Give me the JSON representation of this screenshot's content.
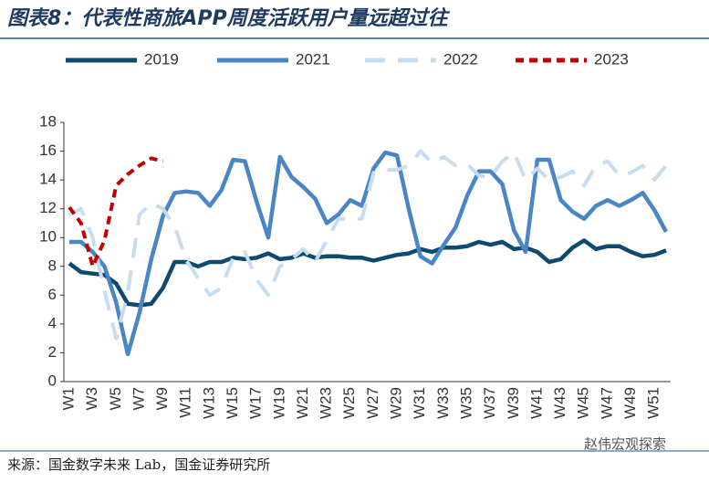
{
  "chart_data": {
    "type": "line",
    "title": "图表8：代表性商旅APP周度活跃用户量远超过往",
    "source": "来源：国金数字未来 Lab，国金证券研究所",
    "watermark": "赵伟宏观探索",
    "categories": [
      "W1",
      null,
      "W3",
      null,
      "W5",
      null,
      "W7",
      null,
      "W9",
      null,
      "W11",
      null,
      "W13",
      null,
      "W15",
      null,
      "W17",
      null,
      "W19",
      null,
      "W21",
      null,
      "W23",
      null,
      "W25",
      null,
      "W27",
      null,
      "W29",
      null,
      "W31",
      null,
      "W33",
      null,
      "W35",
      null,
      "W37",
      null,
      "W39",
      null,
      "W41",
      null,
      "W43",
      null,
      "W45",
      null,
      "W47",
      null,
      "W49",
      null,
      "W51",
      null
    ],
    "series": [
      {
        "name": "2019",
        "color": "#0d4a6e",
        "line_style": "solid",
        "values": [
          8.2,
          7.6,
          7.5,
          7.4,
          6.8,
          5.4,
          5.3,
          5.4,
          6.5,
          8.3,
          8.3,
          8.0,
          8.3,
          8.3,
          8.6,
          8.5,
          8.6,
          8.9,
          8.5,
          8.6,
          8.9,
          8.6,
          8.7,
          8.7,
          8.6,
          8.6,
          8.4,
          8.6,
          8.8,
          8.9,
          9.2,
          9.0,
          9.3,
          9.3,
          9.4,
          9.7,
          9.5,
          9.7,
          9.2,
          9.3,
          9.0,
          8.3,
          8.5,
          9.3,
          9.8,
          9.2,
          9.4,
          9.4,
          9.0,
          8.7,
          8.8,
          9.1
        ]
      },
      {
        "name": "2021",
        "color": "#4a86c5",
        "line_style": "solid",
        "values": [
          9.7,
          9.7,
          9.0,
          8.0,
          5.5,
          1.9,
          4.8,
          8.5,
          11.5,
          13.1,
          13.2,
          13.1,
          12.2,
          13.3,
          15.4,
          15.3,
          12.5,
          10.0,
          15.6,
          14.2,
          13.5,
          12.7,
          11.0,
          11.6,
          12.6,
          12.2,
          14.8,
          15.9,
          15.7,
          12.0,
          8.7,
          8.2,
          9.5,
          10.7,
          12.9,
          14.6,
          14.6,
          13.7,
          10.5,
          9.0,
          15.4,
          15.4,
          12.6,
          11.8,
          11.3,
          12.2,
          12.6,
          12.2,
          12.6,
          13.1,
          11.9,
          10.4
        ]
      },
      {
        "name": "2022",
        "color": "#c8dcef",
        "line_style": "dashed",
        "values": [
          11.6,
          12.0,
          10.0,
          6.3,
          3.0,
          6.2,
          11.6,
          12.4,
          12.0,
          10.8,
          8.4,
          7.2,
          6.0,
          6.5,
          8.6,
          9.0,
          7.1,
          6.0,
          8.0,
          8.5,
          9.2,
          8.3,
          9.8,
          11.3,
          11.3,
          11.3,
          14.5,
          14.7,
          14.7,
          15.0,
          16.0,
          15.2,
          15.6,
          15.0,
          15.1,
          14.3,
          14.2,
          15.3,
          15.9,
          14.0,
          14.8,
          14.0,
          14.2,
          14.6,
          13.6,
          15.0,
          15.3,
          14.3,
          14.5,
          15.0,
          14.0,
          15.0
        ]
      },
      {
        "name": "2023",
        "color": "#c00000",
        "line_style": "dashed",
        "values": [
          12.1,
          11.0,
          8.0,
          9.8,
          13.6,
          14.4,
          15.0,
          15.5,
          15.3,
          null,
          null,
          null,
          null,
          null,
          null,
          null,
          null,
          null,
          null,
          null,
          null,
          null,
          null,
          null,
          null,
          null,
          null,
          null,
          null,
          null,
          null,
          null,
          null,
          null,
          null,
          null,
          null,
          null,
          null,
          null,
          null,
          null,
          null,
          null,
          null,
          null,
          null,
          null,
          null,
          null,
          null,
          null
        ]
      }
    ],
    "ylim": [
      0,
      18
    ],
    "yticks": [
      0,
      2,
      4,
      6,
      8,
      10,
      12,
      14,
      16,
      18
    ],
    "grid": false
  }
}
